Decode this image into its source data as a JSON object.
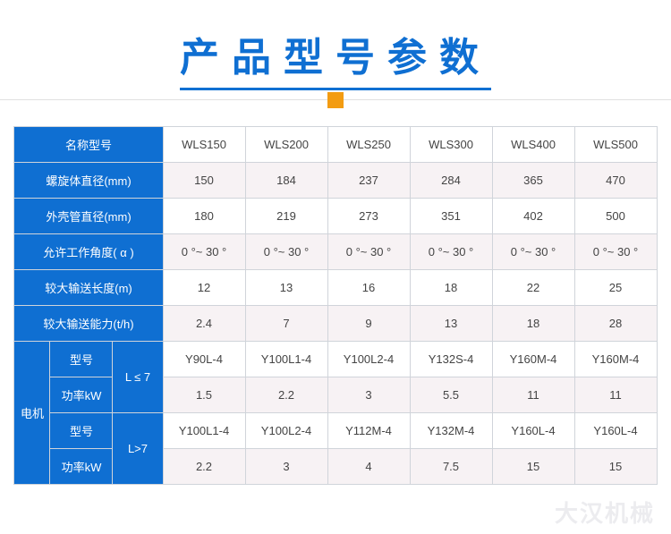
{
  "title": "产品型号参数",
  "colors": {
    "brand": "#0f6fd2",
    "accent_square": "#f39c12",
    "border": "#d0d4da",
    "row_even_bg": "#f7f2f4",
    "row_odd_bg": "#ffffff",
    "text": "#444444"
  },
  "table": {
    "models": [
      "WLS150",
      "WLS200",
      "WLS250",
      "WLS300",
      "WLS400",
      "WLS500"
    ],
    "rows": [
      {
        "label": "名称型号",
        "values": [
          "WLS150",
          "WLS200",
          "WLS250",
          "WLS300",
          "WLS400",
          "WLS500"
        ]
      },
      {
        "label": "螺旋体直径(mm)",
        "values": [
          "150",
          "184",
          "237",
          "284",
          "365",
          "470"
        ]
      },
      {
        "label": "外壳管直径(mm)",
        "values": [
          "180",
          "219",
          "273",
          "351",
          "402",
          "500"
        ]
      },
      {
        "label": "允许工作角度( α )",
        "values": [
          "0 °~  30 °",
          "0 °~  30 °",
          "0 °~  30 °",
          "0 °~  30 °",
          "0 °~  30 °",
          "0 °~  30 °"
        ]
      },
      {
        "label": "较大输送长度(m)",
        "values": [
          "12",
          "13",
          "16",
          "18",
          "22",
          "25"
        ]
      },
      {
        "label": "较大输送能力(t/h)",
        "values": [
          "2.4",
          "7",
          "9",
          "13",
          "18",
          "28"
        ]
      }
    ],
    "motor": {
      "group_label": "电机",
      "sub": [
        {
          "cond": "L ≤ 7",
          "model_label": "型号",
          "power_label": "功率kW",
          "models": [
            "Y90L-4",
            "Y100L1-4",
            "Y100L2-4",
            "Y132S-4",
            "Y160M-4",
            "Y160M-4"
          ],
          "powers": [
            "1.5",
            "2.2",
            "3",
            "5.5",
            "11",
            "11"
          ]
        },
        {
          "cond": "L>7",
          "model_label": "型号",
          "power_label": "功率kW",
          "models": [
            "Y100L1-4",
            "Y100L2-4",
            "Y112M-4",
            "Y132M-4",
            "Y160L-4",
            "Y160L-4"
          ],
          "powers": [
            "2.2",
            "3",
            "4",
            "7.5",
            "15",
            "15"
          ]
        }
      ]
    }
  },
  "watermark": "大汉机械"
}
